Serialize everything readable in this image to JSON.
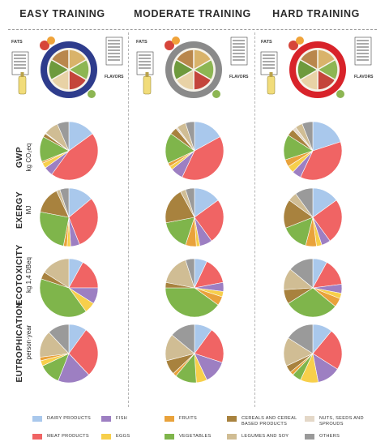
{
  "headers": [
    "EASY TRAINING",
    "MODERATE TRAINING",
    "HARD TRAINING"
  ],
  "plate": {
    "fats": "FATS",
    "flavors": "FLAVORS",
    "rim_colors": [
      "#2e3c8c",
      "#8a8a8a",
      "#d8232a"
    ]
  },
  "rows": [
    {
      "title": "GWP",
      "unit": "kg CO₂eq"
    },
    {
      "title": "EXERGY",
      "unit": "MJ"
    },
    {
      "title": "ECOTOXICITY",
      "unit": "kg 1,4 DBeq"
    },
    {
      "title": "EUTROPHICATION",
      "unit": "person·year"
    }
  ],
  "legend": [
    {
      "label": "DAIRY PRODUCTS",
      "color": "#a9c8ec"
    },
    {
      "label": "FISH",
      "color": "#9d7fc2"
    },
    {
      "label": "FRUITS",
      "color": "#e9a23b"
    },
    {
      "label": "CEREALS AND CEREAL BASED PRODUCTS",
      "color": "#a8823e"
    },
    {
      "label": "NUTS, SEEDS AND SPROUDS",
      "color": "#e4d8c8"
    },
    {
      "label": "MEAT PRODUCTS",
      "color": "#f06464"
    },
    {
      "label": "EGGS",
      "color": "#f7cf4b"
    },
    {
      "label": "VEGETABLES",
      "color": "#7fb54b"
    },
    {
      "label": "LEGUMES AND SOY",
      "color": "#d0bd94"
    },
    {
      "label": "OTHERS",
      "color": "#9a9a9a"
    }
  ],
  "chart_data": [
    {
      "type": "pie",
      "row": "GWP",
      "column": "EASY TRAINING",
      "values": [
        15,
        45,
        5,
        3,
        1,
        14,
        2,
        0.5,
        8,
        6.5
      ]
    },
    {
      "type": "pie",
      "row": "GWP",
      "column": "MODERATE TRAINING",
      "values": [
        17,
        40,
        7,
        2,
        2,
        17,
        4,
        1,
        5,
        5
      ]
    },
    {
      "type": "pie",
      "row": "GWP",
      "column": "HARD TRAINING",
      "values": [
        20,
        37,
        5,
        4,
        4,
        14,
        4,
        2,
        4,
        6
      ]
    },
    {
      "type": "pie",
      "row": "EXERGY",
      "column": "EASY TRAINING",
      "values": [
        14,
        30,
        5,
        2,
        2,
        25,
        15,
        2,
        5
      ]
    },
    {
      "type": "pie",
      "row": "EXERGY",
      "column": "MODERATE TRAINING",
      "values": [
        15,
        25,
        7,
        2,
        6,
        17,
        20,
        3,
        5
      ]
    },
    {
      "type": "pie",
      "row": "EXERGY",
      "column": "HARD TRAINING",
      "values": [
        15,
        25,
        5,
        3,
        6,
        15,
        16,
        5,
        10
      ]
    },
    {
      "type": "pie",
      "row": "ECOTOXICITY",
      "column": "EASY TRAINING",
      "values": [
        8,
        17,
        9,
        6,
        40,
        4,
        16
      ]
    },
    {
      "type": "pie",
      "row": "ECOTOXICITY",
      "column": "MODERATE TRAINING",
      "values": [
        7,
        15,
        5,
        3,
        5,
        40,
        3,
        17,
        5
      ]
    },
    {
      "type": "pie",
      "row": "ECOTOXICITY",
      "column": "HARD TRAINING",
      "values": [
        8,
        15,
        5,
        3,
        5,
        30,
        8,
        12,
        14
      ]
    },
    {
      "type": "pie",
      "row": "EUTROPHICATION",
      "column": "EASY TRAINING",
      "values": [
        10,
        28,
        18,
        12,
        3,
        2,
        15,
        12
      ]
    },
    {
      "type": "pie",
      "row": "EUTROPHICATION",
      "column": "MODERATE TRAINING",
      "values": [
        10,
        20,
        13,
        6,
        12,
        2,
        8,
        15,
        14
      ]
    },
    {
      "type": "pie",
      "row": "EUTROPHICATION",
      "column": "HARD TRAINING",
      "values": [
        11,
        23,
        13,
        10,
        5,
        2,
        4,
        16,
        16
      ]
    }
  ],
  "slice_colors": [
    [
      "#a9c8ec",
      "#f06464",
      "#9d7fc2",
      "#f7cf4b",
      "#e9a23b",
      "#7fb54b",
      "#a8823e",
      "#e4d8c8",
      "#d0bd94",
      "#9a9a9a"
    ],
    [
      "#a9c8ec",
      "#f06464",
      "#9d7fc2",
      "#f7cf4b",
      "#e9a23b",
      "#7fb54b",
      "#a8823e",
      "#e4d8c8",
      "#d0bd94",
      "#9a9a9a"
    ],
    [
      "#a9c8ec",
      "#f06464",
      "#9d7fc2",
      "#f7cf4b",
      "#e9a23b",
      "#7fb54b",
      "#a8823e",
      "#e4d8c8",
      "#d0bd94",
      "#9a9a9a"
    ],
    [
      "#a9c8ec",
      "#f06464",
      "#9d7fc2",
      "#f7cf4b",
      "#e9a23b",
      "#7fb54b",
      "#a8823e",
      "#d0bd94",
      "#9a9a9a"
    ],
    [
      "#a9c8ec",
      "#f06464",
      "#9d7fc2",
      "#f7cf4b",
      "#e9a23b",
      "#7fb54b",
      "#a8823e",
      "#d0bd94",
      "#9a9a9a"
    ],
    [
      "#a9c8ec",
      "#f06464",
      "#9d7fc2",
      "#f7cf4b",
      "#e9a23b",
      "#7fb54b",
      "#a8823e",
      "#d0bd94",
      "#9a9a9a"
    ],
    [
      "#a9c8ec",
      "#f06464",
      "#9d7fc2",
      "#f7cf4b",
      "#7fb54b",
      "#a8823e",
      "#d0bd94"
    ],
    [
      "#a9c8ec",
      "#f06464",
      "#9d7fc2",
      "#f7cf4b",
      "#e9a23b",
      "#7fb54b",
      "#a8823e",
      "#d0bd94",
      "#9a9a9a"
    ],
    [
      "#a9c8ec",
      "#f06464",
      "#9d7fc2",
      "#f7cf4b",
      "#e9a23b",
      "#7fb54b",
      "#a8823e",
      "#d0bd94",
      "#9a9a9a"
    ],
    [
      "#a9c8ec",
      "#f06464",
      "#9d7fc2",
      "#7fb54b",
      "#f7cf4b",
      "#e9a23b",
      "#d0bd94",
      "#9a9a9a"
    ],
    [
      "#a9c8ec",
      "#f06464",
      "#9d7fc2",
      "#f7cf4b",
      "#7fb54b",
      "#e9a23b",
      "#a8823e",
      "#d0bd94",
      "#9a9a9a"
    ],
    [
      "#a9c8ec",
      "#f06464",
      "#9d7fc2",
      "#f7cf4b",
      "#7fb54b",
      "#e9a23b",
      "#a8823e",
      "#d0bd94",
      "#9a9a9a"
    ]
  ]
}
